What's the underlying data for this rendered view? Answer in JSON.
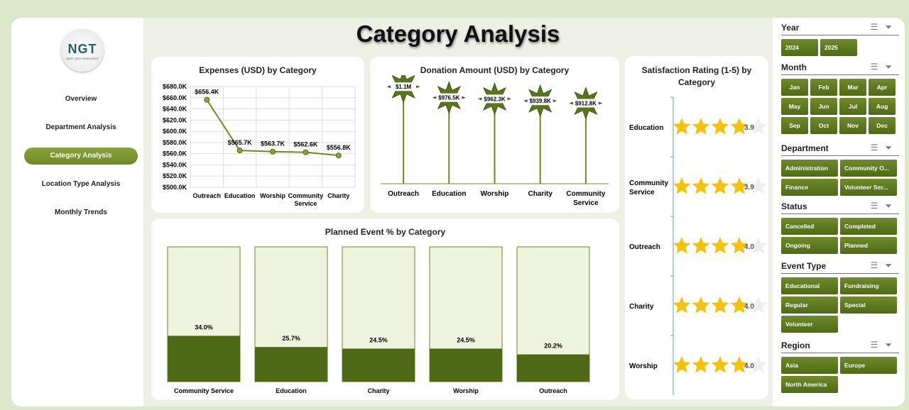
{
  "title": "Category Analysis",
  "logo": {
    "text": "NGT",
    "sub": "NEXT GEN TEMPLATES"
  },
  "nav": [
    "Overview",
    "Department Analysis",
    "Category Analysis",
    "Location Type Analysis",
    "Monthly Trends"
  ],
  "active_nav": 2,
  "colors": {
    "accent": "#6d8a22",
    "bar_dark": "#4e6a16",
    "bar_light": "#eef3de",
    "star": "#f4c20d"
  },
  "chart_data": [
    {
      "type": "line",
      "title": "Expenses (USD) by Category",
      "categories": [
        "Outreach",
        "Education",
        "Worship",
        "Community Service",
        "Charity"
      ],
      "values": [
        656.4,
        565.7,
        563.7,
        562.6,
        556.8
      ],
      "labels": [
        "$656.4K",
        "$565.7K",
        "$563.7K",
        "$562.6K",
        "$556.8K"
      ],
      "ylim": [
        500,
        680
      ],
      "yticks": [
        "$500.0K",
        "$520.0K",
        "$540.0K",
        "$560.0K",
        "$580.0K",
        "$600.0K",
        "$620.0K",
        "$640.0K",
        "$660.0K",
        "$680.0K"
      ]
    },
    {
      "type": "bar",
      "title": "Donation Amount (USD) by Category",
      "categories": [
        "Outreach",
        "Education",
        "Worship",
        "Charity",
        "Community Service"
      ],
      "values": [
        1100,
        976.5,
        962.3,
        939.8,
        912.8
      ],
      "labels": [
        "$1.1M",
        "$976.5K",
        "$962.3K",
        "$939.8K",
        "$912.8K"
      ]
    },
    {
      "type": "bar",
      "title": "Satisfaction Rating (1-5) by Category",
      "categories": [
        "Education",
        "Community Service",
        "Outreach",
        "Charity",
        "Worship"
      ],
      "values": [
        3.9,
        3.9,
        4.0,
        4.0,
        4.0
      ],
      "labels": [
        "3.9",
        "3.9",
        "4.0",
        "4.0",
        "4.0"
      ],
      "max": 5
    },
    {
      "type": "bar",
      "title": "Planned Event % by Category",
      "categories": [
        "Community Service",
        "Education",
        "Charity",
        "Worship",
        "Outreach"
      ],
      "values": [
        34.0,
        25.7,
        24.5,
        24.5,
        20.2
      ],
      "labels": [
        "34.0%",
        "25.7%",
        "24.5%",
        "24.5%",
        "20.2%"
      ],
      "ylim": [
        0,
        100
      ]
    }
  ],
  "slicers": [
    {
      "title": "Year",
      "cols": 2,
      "items": [
        "2024",
        "2025"
      ]
    },
    {
      "title": "Month",
      "cols": 4,
      "items": [
        "Jan",
        "Feb",
        "Mar",
        "Apr",
        "May",
        "Jun",
        "Jul",
        "Aug",
        "Sep",
        "Oct",
        "Nov",
        "Dec"
      ]
    },
    {
      "title": "Department",
      "cols": 2,
      "items": [
        "Administration",
        "Community O...",
        "Finance",
        "Volunteer Ser..."
      ]
    },
    {
      "title": "Status",
      "cols": 2,
      "items": [
        "Cancelled",
        "Completed",
        "Ongoing",
        "Planned"
      ]
    },
    {
      "title": "Event Type",
      "cols": 2,
      "items": [
        "Educational",
        "Fundraising",
        "Regular",
        "Special",
        "Volunteer"
      ]
    },
    {
      "title": "Region",
      "cols": 2,
      "items": [
        "Asia",
        "Europe",
        "North America"
      ]
    }
  ]
}
